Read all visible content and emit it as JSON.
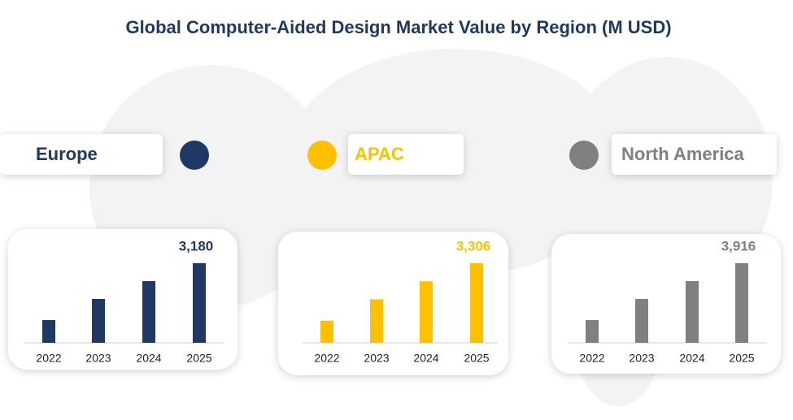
{
  "title": "Global Computer-Aided Design Market Value by Region (M USD)",
  "chart_data": [
    {
      "type": "bar",
      "title": "Europe",
      "categories": [
        "2022",
        "2023",
        "2024",
        "2025"
      ],
      "values": [
        909,
        1752,
        2466,
        3180
      ],
      "value_labels": [
        null,
        null,
        null,
        "3,180"
      ],
      "color": "#1f3864",
      "ylim": [
        0,
        3180
      ]
    },
    {
      "type": "bar",
      "title": "APAC",
      "categories": [
        "2022",
        "2023",
        "2024",
        "2025"
      ],
      "values": [
        920,
        1806,
        2556,
        3306
      ],
      "value_labels": [
        null,
        null,
        null,
        "3,306"
      ],
      "color": "#ffc000",
      "ylim": [
        0,
        3306
      ]
    },
    {
      "type": "bar",
      "title": "North America",
      "categories": [
        "2022",
        "2023",
        "2024",
        "2025"
      ],
      "values": [
        1119,
        2158,
        3037,
        3916
      ],
      "value_labels": [
        null,
        null,
        null,
        "3,916"
      ],
      "color": "#808080",
      "ylim": [
        0,
        3916
      ]
    }
  ]
}
